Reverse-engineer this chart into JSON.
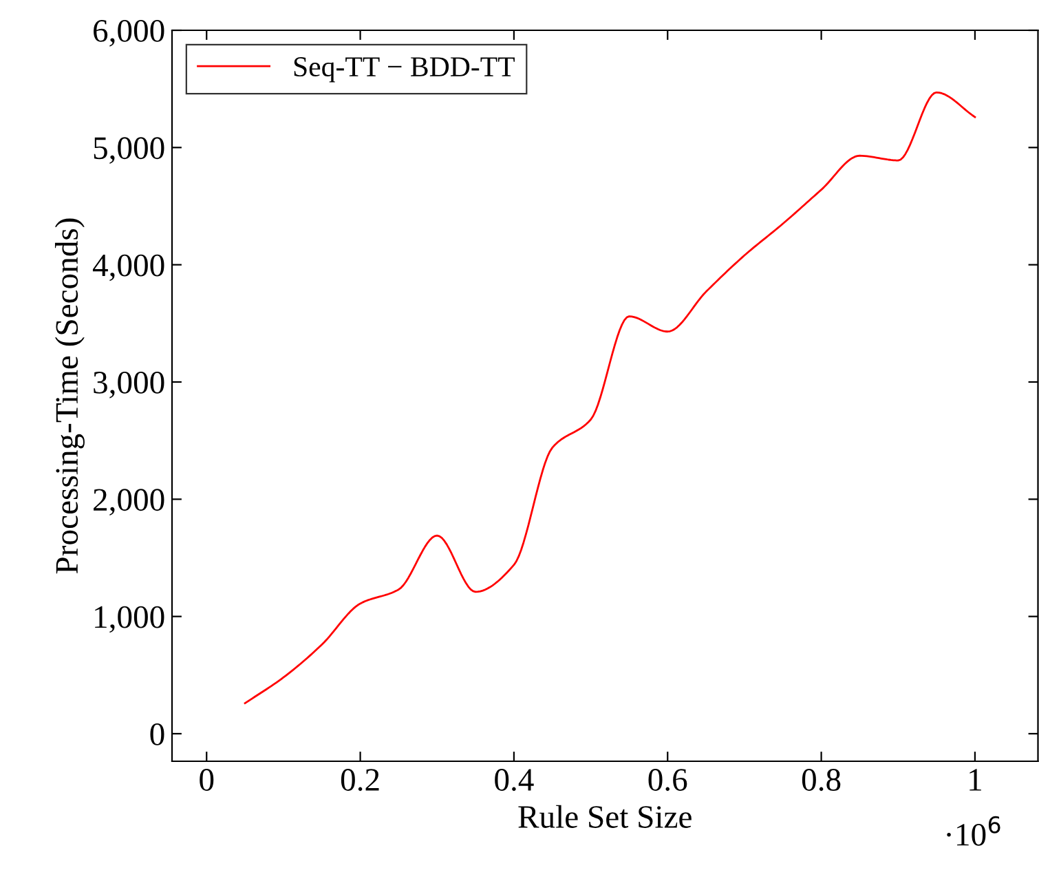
{
  "chart_data": {
    "type": "line",
    "xlabel": "Rule Set Size",
    "ylabel": "Processing-Time (Seconds)",
    "x": [
      0.05,
      0.1,
      0.15,
      0.2,
      0.25,
      0.3,
      0.35,
      0.4,
      0.45,
      0.5,
      0.55,
      0.6,
      0.65,
      0.7,
      0.75,
      0.8,
      0.85,
      0.9,
      0.95,
      1
    ],
    "series": [
      {
        "name": "Seq-TT − BDD-TT",
        "color": "#ff0000",
        "values": [
          260,
          480,
          760,
          1110,
          1230,
          1690,
          1210,
          1440,
          2440,
          2680,
          3560,
          3430,
          3770,
          4080,
          4350,
          4640,
          4930,
          4890,
          5470,
          5260
        ]
      }
    ],
    "xlim": [
      -0.045,
      1.082
    ],
    "ylim": [
      -235,
      6000
    ],
    "xticks": [
      0,
      0.2,
      0.4,
      0.6,
      0.8,
      1
    ],
    "yticks": [
      0,
      {
        "value": 1000,
        "label": "1,000"
      },
      {
        "value": 2000,
        "label": "2,000"
      },
      {
        "value": 3000,
        "label": "3,000"
      },
      {
        "value": 4000,
        "label": "4,000"
      },
      {
        "value": 5000,
        "label": "5,000"
      },
      {
        "value": 6000,
        "label": "6,000"
      }
    ],
    "annotations": [
      "·10$^{6}$"
    ],
    "legend": "top left",
    "grid": false,
    "marker": "none",
    "line_style": "solid"
  }
}
